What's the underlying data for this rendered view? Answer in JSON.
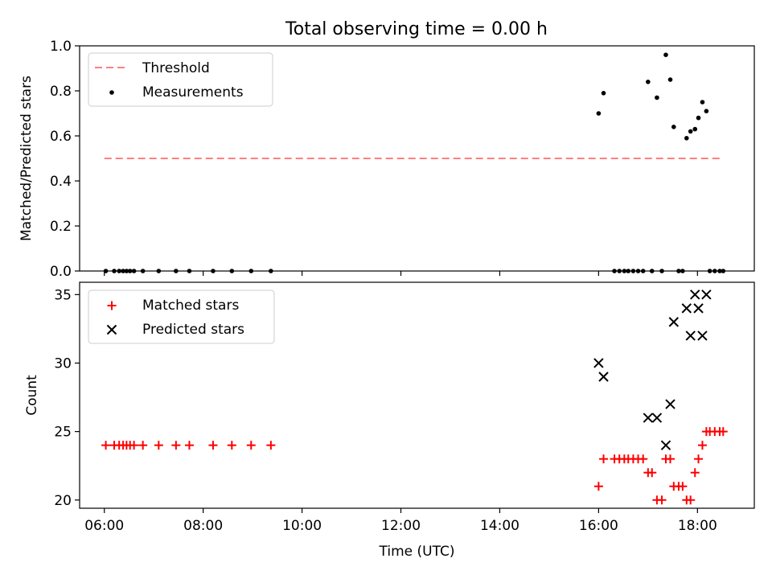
{
  "figure": {
    "title": "Total observing time = 0.00 h"
  },
  "chart_data": [
    {
      "type": "scatter",
      "ylabel": "Matched/Predicted stars",
      "xlabel": "",
      "xlim": [
        5.5,
        19.15
      ],
      "ylim": [
        0,
        1.0
      ],
      "x_ticks": [
        6,
        8,
        10,
        12,
        14,
        16,
        18
      ],
      "y_ticks": [
        0.0,
        0.2,
        0.4,
        0.6,
        0.8,
        1.0
      ],
      "y_tick_labels": [
        "0.0",
        "0.2",
        "0.4",
        "0.6",
        "0.8",
        "1.0"
      ],
      "grid": false,
      "legend": {
        "position": "top-left",
        "entries": [
          "Threshold",
          "Measurements"
        ]
      },
      "colors": {
        "threshold": "#ff7f7f",
        "measurements": "#000000"
      },
      "threshold": {
        "name": "Threshold",
        "value": 0.5,
        "x_range": [
          6.0,
          18.45
        ]
      },
      "series": [
        {
          "name": "Measurements",
          "points": [
            [
              6.03,
              0
            ],
            [
              6.2,
              0
            ],
            [
              6.3,
              0
            ],
            [
              6.38,
              0
            ],
            [
              6.45,
              0
            ],
            [
              6.52,
              0
            ],
            [
              6.6,
              0
            ],
            [
              6.78,
              0
            ],
            [
              7.1,
              0
            ],
            [
              7.45,
              0
            ],
            [
              7.72,
              0
            ],
            [
              8.2,
              0
            ],
            [
              8.58,
              0
            ],
            [
              8.97,
              0
            ],
            [
              9.37,
              0
            ],
            [
              16.0,
              0.7
            ],
            [
              16.1,
              0.79
            ],
            [
              16.32,
              0
            ],
            [
              16.42,
              0
            ],
            [
              16.52,
              0
            ],
            [
              16.6,
              0
            ],
            [
              16.7,
              0
            ],
            [
              16.8,
              0
            ],
            [
              16.9,
              0
            ],
            [
              17.0,
              0.84
            ],
            [
              17.08,
              0
            ],
            [
              17.18,
              0.77
            ],
            [
              17.28,
              0
            ],
            [
              17.36,
              0.96
            ],
            [
              17.45,
              0.85
            ],
            [
              17.52,
              0.64
            ],
            [
              17.62,
              0
            ],
            [
              17.7,
              0
            ],
            [
              17.78,
              0.59
            ],
            [
              17.86,
              0.62
            ],
            [
              17.95,
              0.63
            ],
            [
              18.02,
              0.68
            ],
            [
              18.1,
              0.75
            ],
            [
              18.18,
              0.71
            ],
            [
              18.25,
              0
            ],
            [
              18.35,
              0
            ],
            [
              18.45,
              0
            ],
            [
              18.52,
              0
            ]
          ]
        }
      ]
    },
    {
      "type": "scatter",
      "ylabel": "Count",
      "xlabel": "Time (UTC)",
      "xlim": [
        5.5,
        19.15
      ],
      "ylim": [
        19.4,
        35.9
      ],
      "x_ticks": [
        6,
        8,
        10,
        12,
        14,
        16,
        18
      ],
      "x_tick_labels": [
        "06:00",
        "08:00",
        "10:00",
        "12:00",
        "14:00",
        "16:00",
        "18:00"
      ],
      "y_ticks": [
        20,
        25,
        30,
        35
      ],
      "y_tick_labels": [
        "20",
        "25",
        "30",
        "35"
      ],
      "grid": false,
      "legend": {
        "position": "top-left",
        "entries": [
          "Matched stars",
          "Predicted stars"
        ]
      },
      "colors": {
        "matched": "#ff0000",
        "predicted": "#000000"
      },
      "series": [
        {
          "name": "Matched stars",
          "marker": "plus",
          "points": [
            [
              6.03,
              24
            ],
            [
              6.2,
              24
            ],
            [
              6.3,
              24
            ],
            [
              6.38,
              24
            ],
            [
              6.45,
              24
            ],
            [
              6.52,
              24
            ],
            [
              6.6,
              24
            ],
            [
              6.78,
              24
            ],
            [
              7.1,
              24
            ],
            [
              7.45,
              24
            ],
            [
              7.72,
              24
            ],
            [
              8.2,
              24
            ],
            [
              8.58,
              24
            ],
            [
              8.97,
              24
            ],
            [
              9.37,
              24
            ],
            [
              16.0,
              21
            ],
            [
              16.1,
              23
            ],
            [
              16.32,
              23
            ],
            [
              16.42,
              23
            ],
            [
              16.52,
              23
            ],
            [
              16.6,
              23
            ],
            [
              16.7,
              23
            ],
            [
              16.8,
              23
            ],
            [
              16.9,
              23
            ],
            [
              17.0,
              22
            ],
            [
              17.08,
              22
            ],
            [
              17.18,
              20
            ],
            [
              17.28,
              20
            ],
            [
              17.36,
              23
            ],
            [
              17.45,
              23
            ],
            [
              17.52,
              21
            ],
            [
              17.62,
              21
            ],
            [
              17.7,
              21
            ],
            [
              17.78,
              20
            ],
            [
              17.86,
              20
            ],
            [
              17.95,
              22
            ],
            [
              18.02,
              23
            ],
            [
              18.1,
              24
            ],
            [
              18.18,
              25
            ],
            [
              18.25,
              25
            ],
            [
              18.35,
              25
            ],
            [
              18.45,
              25
            ],
            [
              18.52,
              25
            ]
          ]
        },
        {
          "name": "Predicted stars",
          "marker": "x",
          "points": [
            [
              16.0,
              30
            ],
            [
              16.1,
              29
            ],
            [
              17.0,
              26
            ],
            [
              17.18,
              26
            ],
            [
              17.36,
              24
            ],
            [
              17.45,
              27
            ],
            [
              17.52,
              33
            ],
            [
              17.78,
              34
            ],
            [
              17.86,
              32
            ],
            [
              17.95,
              35
            ],
            [
              18.02,
              34
            ],
            [
              18.1,
              32
            ],
            [
              18.18,
              35
            ]
          ]
        }
      ]
    }
  ]
}
